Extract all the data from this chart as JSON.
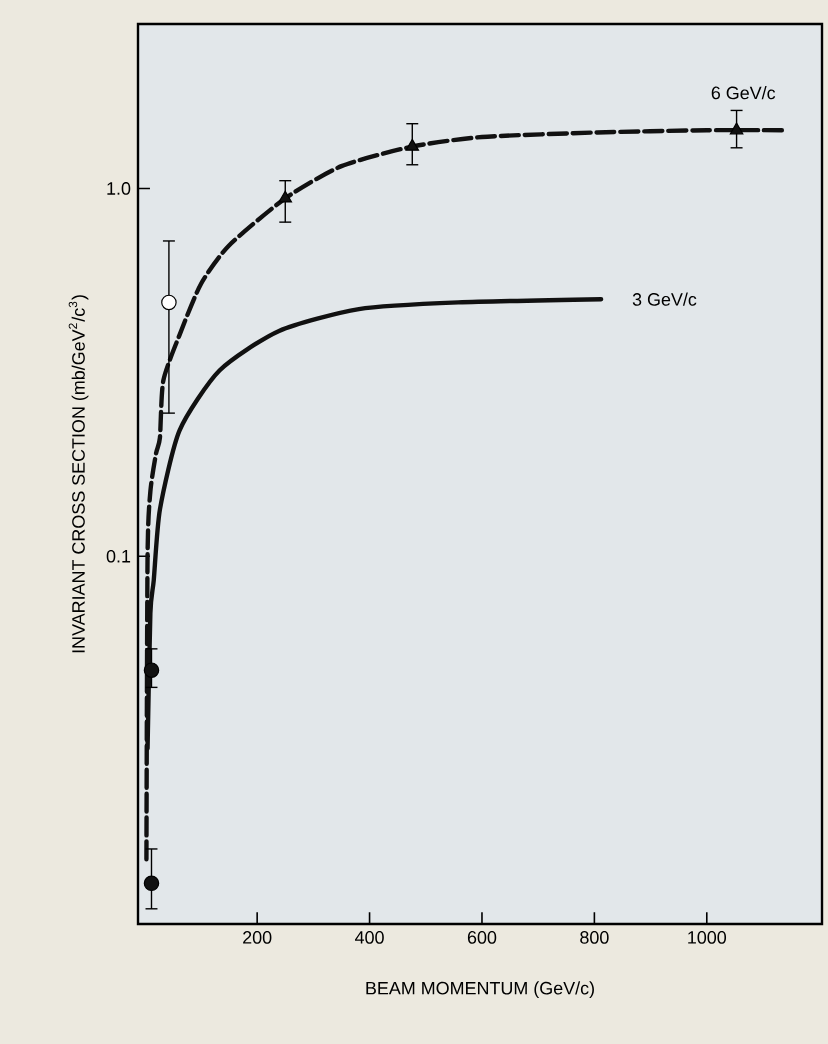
{
  "chart_data": {
    "type": "line",
    "xlabel": "BEAM MOMENTUM (GeV/c)",
    "ylabel": "INVARIANT CROSS SECTION (mb/GeV$^{2}$/c$^{3}$)",
    "log": "y",
    "xlim": [
      -12,
      1205
    ],
    "ylim": [
      0.01,
      2.8
    ],
    "xticks": [
      200,
      400,
      600,
      800,
      1000
    ],
    "yticks": [
      {
        "value": 0.1,
        "label": "0.1"
      },
      {
        "value": 1,
        "label": "1.0"
      }
    ],
    "grid": false,
    "legend": false,
    "series": [
      {
        "name": "6 GeV/c",
        "color": "#111111",
        "line_style": "dashed",
        "marker": "none",
        "x": [
          3,
          5,
          10,
          20,
          27,
          33,
          62,
          100,
          150,
          250,
          350,
          476,
          600,
          805,
          1000,
          1135
        ],
        "values": [
          0.015,
          0.1,
          0.15,
          0.19,
          0.21,
          0.3,
          0.4,
          0.55,
          0.7,
          0.94,
          1.15,
          1.3,
          1.38,
          1.42,
          1.44,
          1.44
        ]
      },
      {
        "name": "3 GeV/c",
        "color": "#111111",
        "line_style": "solid",
        "marker": "none",
        "x": [
          5,
          10,
          16,
          27,
          62,
          133,
          239,
          381,
          558,
          812
        ],
        "values": [
          0.03,
          0.07,
          0.086,
          0.134,
          0.22,
          0.32,
          0.41,
          0.47,
          0.49,
          0.5
        ]
      },
      {
        "type": "scatter",
        "color": "#111111",
        "marker": "triangle",
        "x": [
          250,
          476,
          1053
        ],
        "values": [
          0.94,
          1.3,
          1.44
        ],
        "errors": [
          [
            0.81,
            1.05
          ],
          [
            1.16,
            1.5
          ],
          [
            1.29,
            1.63
          ]
        ]
      },
      {
        "type": "scatter",
        "color": "#ffffff",
        "marker": "circle",
        "x": [
          43
        ],
        "values": [
          0.49
        ],
        "errors": [
          [
            0.245,
            0.72
          ]
        ]
      },
      {
        "type": "scatter",
        "color": "#111111",
        "marker": "circle",
        "x": [
          12,
          12
        ],
        "values": [
          0.049,
          0.0129
        ],
        "errors": [
          [
            0.044,
            0.056
          ],
          [
            0.011,
            0.016
          ]
        ]
      }
    ]
  }
}
